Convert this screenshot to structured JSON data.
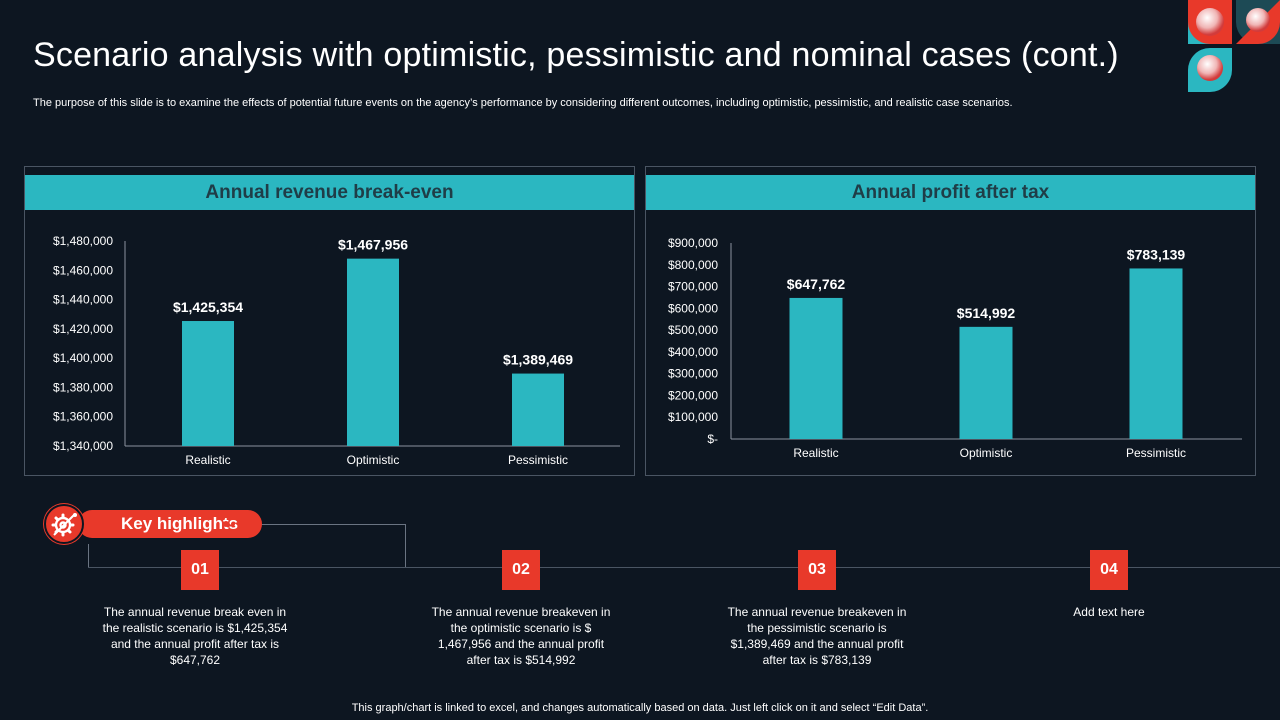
{
  "title": "Scenario analysis with optimistic, pessimistic and nominal cases (cont.)",
  "subtitle": "The purpose of this slide is to examine the effects of potential future events on the agency’s performance by considering different outcomes, including optimistic, pessimistic, and realistic case scenarios.",
  "colors": {
    "accent": "#2bb7c1",
    "red": "#e8392a",
    "background": "#0d1621"
  },
  "chart_data": [
    {
      "type": "bar",
      "title": "Annual revenue break-even",
      "categories": [
        "Realistic",
        "Optimistic",
        "Pessimistic"
      ],
      "values": [
        1425354,
        1467956,
        1389469
      ],
      "value_labels": [
        "$1,425,354",
        "$1,467,956",
        "$1,389,469"
      ],
      "ylim": [
        1340000,
        1480000
      ],
      "yticks": [
        1340000,
        1360000,
        1380000,
        1400000,
        1420000,
        1440000,
        1460000,
        1480000
      ],
      "ytick_labels": [
        "$1,340,000",
        "$1,360,000",
        "$1,380,000",
        "$1,400,000",
        "$1,420,000",
        "$1,440,000",
        "$1,460,000",
        "$1,480,000"
      ],
      "xlabel": "",
      "ylabel": "",
      "grid": false
    },
    {
      "type": "bar",
      "title": "Annual profit after tax",
      "categories": [
        "Realistic",
        "Optimistic",
        "Pessimistic"
      ],
      "values": [
        647762,
        514992,
        783139
      ],
      "value_labels": [
        "$647,762",
        "$514,992",
        "$783,139"
      ],
      "ylim": [
        0,
        900000
      ],
      "yticks": [
        0,
        100000,
        200000,
        300000,
        400000,
        500000,
        600000,
        700000,
        800000,
        900000
      ],
      "ytick_labels": [
        "$-",
        "$100,000",
        "$200,000",
        "$300,000",
        "$400,000",
        "$500,000",
        "$600,000",
        "$700,000",
        "$800,000",
        "$900,000"
      ],
      "xlabel": "",
      "ylabel": "",
      "grid": false
    }
  ],
  "highlights": {
    "label": "Key highlights",
    "icon": "gear-icon",
    "steps": [
      {
        "num": "01",
        "text": "The annual revenue break even in the realistic scenario is $1,425,354 and the annual profit after tax is $647,762"
      },
      {
        "num": "02",
        "text": "The annual revenue breakeven in the optimistic scenario is $ 1,467,956 and the annual profit after tax is $514,992"
      },
      {
        "num": "03",
        "text": "The annual revenue breakeven in the pessimistic scenario is $1,389,469 and the annual profit after tax is $783,139"
      },
      {
        "num": "04",
        "text": "Add text here"
      }
    ]
  },
  "footer": "This graph/chart is linked to excel, and changes automatically based on data. Just left click on it and select “Edit Data”."
}
